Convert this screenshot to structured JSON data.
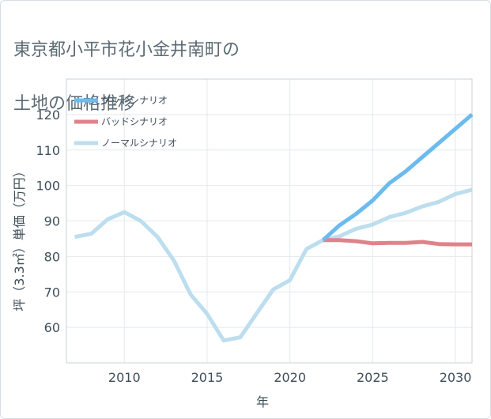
{
  "title": {
    "line1": "東京都小平市花小金井南町の",
    "line2": "土地の価格推移"
  },
  "chart_data": {
    "type": "line",
    "xlabel": "年",
    "ylabel": "坪（3.3㎡）単価（万円）",
    "xlim": [
      2006.5,
      2031
    ],
    "ylim": [
      50,
      130
    ],
    "xticks": [
      2010,
      2015,
      2020,
      2025,
      2030
    ],
    "yticks": [
      60,
      70,
      80,
      90,
      100,
      110,
      120
    ],
    "grid": true,
    "legend_position": "top-left",
    "series": [
      {
        "name": "グッドシナリオ",
        "color": "#6bbbee",
        "x": [
          2022,
          2023,
          2024,
          2025,
          2026,
          2027,
          2028,
          2029,
          2030,
          2031
        ],
        "values": [
          84.6,
          88.8,
          92.0,
          95.8,
          100.6,
          104.0,
          108.0,
          112.0,
          116.0,
          120.0
        ]
      },
      {
        "name": "バッドシナリオ",
        "color": "#e0828a",
        "x": [
          2022,
          2023,
          2024,
          2025,
          2026,
          2027,
          2028,
          2029,
          2030,
          2031
        ],
        "values": [
          84.6,
          84.6,
          84.3,
          83.7,
          83.8,
          83.8,
          84.1,
          83.5,
          83.4,
          83.4
        ]
      },
      {
        "name": "ノーマルシナリオ",
        "color": "#bcdeee",
        "x": [
          2007,
          2008,
          2009,
          2010,
          2011,
          2012,
          2013,
          2014,
          2015,
          2016,
          2017,
          2018,
          2019,
          2020,
          2021,
          2022,
          2023,
          2024,
          2025,
          2026,
          2027,
          2028,
          2029,
          2030,
          2031
        ],
        "values": [
          85.5,
          86.4,
          90.5,
          92.5,
          90.0,
          85.5,
          78.8,
          69.3,
          63.8,
          56.3,
          57.2,
          64.0,
          70.7,
          73.3,
          82.1,
          84.6,
          85.7,
          87.8,
          89.0,
          91.1,
          92.3,
          94.1,
          95.4,
          97.6,
          98.8
        ]
      }
    ]
  }
}
